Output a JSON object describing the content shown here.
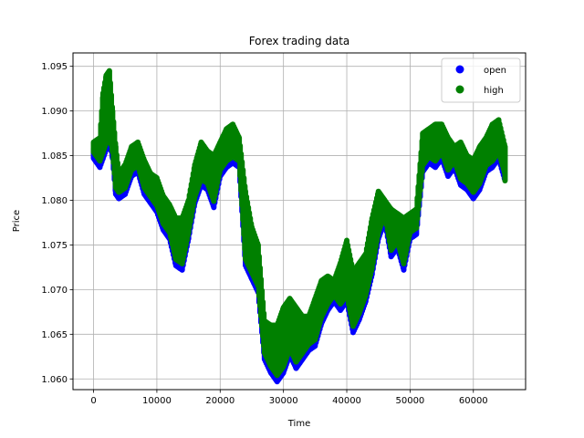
{
  "chart_data": {
    "type": "scatter",
    "title": "Forex trading data",
    "xlabel": "Time",
    "ylabel": "Price",
    "xlim": [
      -3250,
      68250
    ],
    "ylim": [
      1.0588,
      1.0965
    ],
    "xticks": [
      0,
      10000,
      20000,
      30000,
      40000,
      50000,
      60000
    ],
    "yticks": [
      1.06,
      1.065,
      1.07,
      1.075,
      1.08,
      1.085,
      1.09,
      1.095
    ],
    "ytick_labels": [
      "1.060",
      "1.065",
      "1.070",
      "1.075",
      "1.080",
      "1.085",
      "1.090",
      "1.095"
    ],
    "grid": true,
    "legend_position": "top-right",
    "series": [
      {
        "name": "open",
        "color": "#0000ff"
      },
      {
        "name": "high",
        "color": "#008000"
      }
    ],
    "x": [
      0,
      1000,
      1500,
      2000,
      2500,
      3000,
      3500,
      4000,
      5000,
      6000,
      7000,
      8000,
      9000,
      10000,
      11000,
      12000,
      13000,
      14000,
      15000,
      16000,
      17000,
      18000,
      19000,
      20000,
      21000,
      22000,
      23000,
      24000,
      25000,
      26000,
      27000,
      28000,
      29000,
      30000,
      31000,
      32000,
      33000,
      34000,
      35000,
      36000,
      37000,
      38000,
      39000,
      40000,
      41000,
      42000,
      43000,
      44000,
      45000,
      46000,
      47000,
      48000,
      49000,
      50000,
      51000,
      52000,
      53000,
      54000,
      55000,
      56000,
      57000,
      58000,
      59000,
      60000,
      61000,
      62000,
      63000,
      64000,
      65000
    ],
    "open_low": [
      1.085,
      1.084,
      1.085,
      1.086,
      1.087,
      1.085,
      1.081,
      1.0805,
      1.081,
      1.083,
      1.0835,
      1.081,
      1.08,
      1.079,
      1.077,
      1.076,
      1.073,
      1.0725,
      1.076,
      1.08,
      1.082,
      1.0815,
      1.0795,
      1.083,
      1.084,
      1.0845,
      1.084,
      1.073,
      1.0715,
      1.07,
      1.0625,
      1.061,
      1.06,
      1.061,
      1.063,
      1.0615,
      1.0625,
      1.0635,
      1.064,
      1.0665,
      1.068,
      1.069,
      1.068,
      1.069,
      1.0655,
      1.067,
      1.069,
      1.072,
      1.076,
      1.078,
      1.074,
      1.075,
      1.0725,
      1.076,
      1.0765,
      1.0835,
      1.0845,
      1.084,
      1.085,
      1.083,
      1.084,
      1.082,
      1.0815,
      1.0805,
      1.0815,
      1.0835,
      1.084,
      1.085,
      1.0825
    ],
    "high_max": [
      1.0865,
      1.087,
      1.092,
      1.094,
      1.0945,
      1.09,
      1.086,
      1.083,
      1.084,
      1.086,
      1.0865,
      1.0845,
      1.083,
      1.0825,
      1.0805,
      1.0795,
      1.078,
      1.078,
      1.08,
      1.084,
      1.0865,
      1.0855,
      1.085,
      1.0865,
      1.088,
      1.0885,
      1.087,
      1.081,
      1.077,
      1.075,
      1.0665,
      1.066,
      1.066,
      1.068,
      1.069,
      1.068,
      1.067,
      1.067,
      1.069,
      1.071,
      1.0715,
      1.071,
      1.073,
      1.0755,
      1.072,
      1.073,
      1.074,
      1.078,
      1.081,
      1.08,
      1.079,
      1.0785,
      1.078,
      1.0785,
      1.079,
      1.0875,
      1.088,
      1.0885,
      1.0885,
      1.087,
      1.086,
      1.0865,
      1.085,
      1.0845,
      1.086,
      1.087,
      1.0885,
      1.089,
      1.086
    ]
  }
}
